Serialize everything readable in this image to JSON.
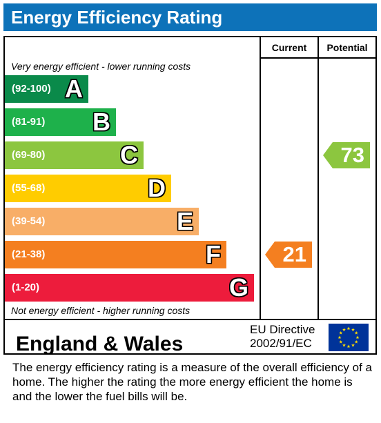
{
  "header": {
    "title": "Energy Efficiency Rating"
  },
  "columns": {
    "current": "Current",
    "potential": "Potential"
  },
  "captions": {
    "top": "Very energy efficient - lower running costs",
    "bottom": "Not energy efficient - higher running costs"
  },
  "chart_data": {
    "type": "bar",
    "title": "Energy Efficiency Rating",
    "bands": [
      {
        "letter": "A",
        "range": "(92-100)",
        "color": "#0a8a4a"
      },
      {
        "letter": "B",
        "range": "(81-91)",
        "color": "#1eb14b"
      },
      {
        "letter": "C",
        "range": "(69-80)",
        "color": "#8cc63f"
      },
      {
        "letter": "D",
        "range": "(55-68)",
        "color": "#ffcc00"
      },
      {
        "letter": "E",
        "range": "(39-54)",
        "color": "#f8ae67"
      },
      {
        "letter": "F",
        "range": "(21-38)",
        "color": "#f47f20"
      },
      {
        "letter": "G",
        "range": "(1-20)",
        "color": "#ed1c3c"
      }
    ],
    "current": {
      "value": 21,
      "band": "F",
      "color": "#f47f20"
    },
    "potential": {
      "value": 73,
      "band": "C",
      "color": "#8cc63f"
    }
  },
  "footer": {
    "region": "England & Wales",
    "directive_line1": "EU Directive",
    "directive_line2": "2002/91/EC",
    "flag_color": "#003399",
    "star_color": "#ffdd00"
  },
  "description": "The energy efficiency rating is a measure of the overall efficiency of a home.  The higher the rating the more energy efficient the home is and the lower the fuel bills will be."
}
